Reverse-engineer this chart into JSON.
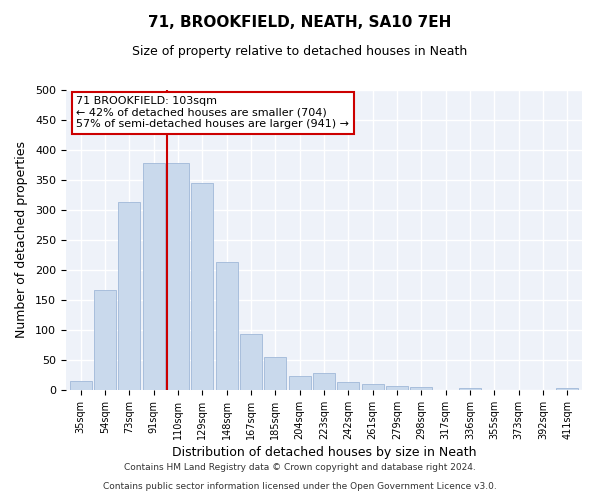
{
  "title": "71, BROOKFIELD, NEATH, SA10 7EH",
  "subtitle": "Size of property relative to detached houses in Neath",
  "xlabel": "Distribution of detached houses by size in Neath",
  "ylabel": "Number of detached properties",
  "bar_color": "#c9d9ec",
  "bar_edge_color": "#a0b8d8",
  "categories": [
    "35sqm",
    "54sqm",
    "73sqm",
    "91sqm",
    "110sqm",
    "129sqm",
    "148sqm",
    "167sqm",
    "185sqm",
    "204sqm",
    "223sqm",
    "242sqm",
    "261sqm",
    "279sqm",
    "298sqm",
    "317sqm",
    "336sqm",
    "355sqm",
    "373sqm",
    "392sqm",
    "411sqm"
  ],
  "values": [
    15,
    166,
    314,
    378,
    378,
    345,
    214,
    93,
    55,
    23,
    28,
    14,
    10,
    7,
    5,
    0,
    4,
    0,
    0,
    0,
    4
  ],
  "vline_index": 4,
  "vline_color": "#cc0000",
  "annotation_box_text": "71 BROOKFIELD: 103sqm\n← 42% of detached houses are smaller (704)\n57% of semi-detached houses are larger (941) →",
  "ylim": [
    0,
    500
  ],
  "yticks": [
    0,
    50,
    100,
    150,
    200,
    250,
    300,
    350,
    400,
    450,
    500
  ],
  "footnote1": "Contains HM Land Registry data © Crown copyright and database right 2024.",
  "footnote2": "Contains public sector information licensed under the Open Government Licence v3.0.",
  "bg_color": "#eef2f9",
  "grid_color": "#ffffff",
  "fig_bg_color": "#ffffff"
}
